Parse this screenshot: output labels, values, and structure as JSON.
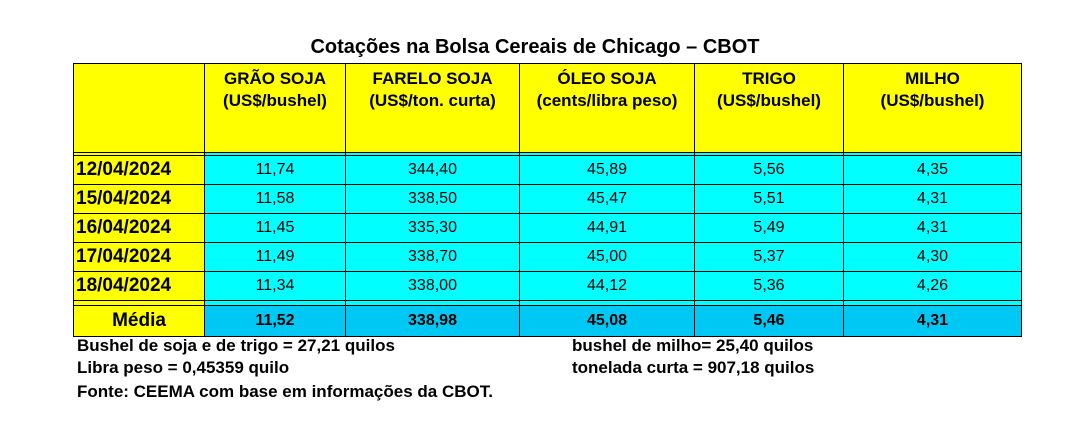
{
  "title": "Cotações na Bolsa Cereais de Chicago – CBOT",
  "table": {
    "columns": [
      {
        "name": "GRÃO SOJA",
        "unit": "(US$/bushel)"
      },
      {
        "name": "FARELO SOJA",
        "unit": "(US$/ton. curta)"
      },
      {
        "name": "ÓLEO SOJA",
        "unit": "(cents/libra peso)"
      },
      {
        "name": "TRIGO",
        "unit": "(US$/bushel)"
      },
      {
        "name": "MILHO",
        "unit": "(US$/bushel)"
      }
    ],
    "rows": [
      {
        "date": "12/04/2024",
        "values": [
          "11,74",
          "344,40",
          "45,89",
          "5,56",
          "4,35"
        ]
      },
      {
        "date": "15/04/2024",
        "values": [
          "11,58",
          "338,50",
          "45,47",
          "5,51",
          "4,31"
        ]
      },
      {
        "date": "16/04/2024",
        "values": [
          "11,45",
          "335,30",
          "44,91",
          "5,49",
          "4,31"
        ]
      },
      {
        "date": "17/04/2024",
        "values": [
          "11,49",
          "338,70",
          "45,00",
          "5,37",
          "4,30"
        ]
      },
      {
        "date": "18/04/2024",
        "values": [
          "11,34",
          "338,00",
          "44,12",
          "5,36",
          "4,26"
        ]
      }
    ],
    "average": {
      "label": "Média",
      "values": [
        "11,52",
        "338,98",
        "45,08",
        "5,46",
        "4,31"
      ]
    }
  },
  "notes": {
    "left": [
      "Bushel de soja e de trigo = 27,21 quilos",
      "Libra peso = 0,45359 quilo"
    ],
    "right": [
      "bushel de milho= 25,40 quilos",
      "tonelada curta = 907,18 quilos"
    ],
    "source": "Fonte: CEEMA com base em informações da CBOT."
  }
}
